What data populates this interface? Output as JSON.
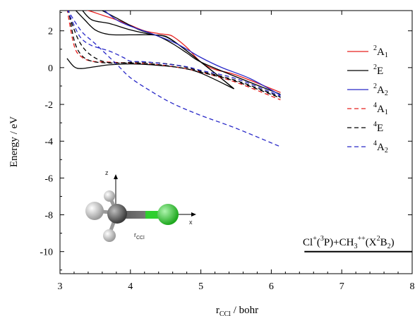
{
  "chart_data": {
    "type": "line",
    "xlabel": {
      "main": "r",
      "sub": "CCl",
      "rest": " / bohr"
    },
    "ylabel": "Energy / eV",
    "xlim": [
      3,
      8
    ],
    "ylim": [
      -11.2,
      3.1
    ],
    "xticks": [
      "3",
      "4",
      "5",
      "6",
      "7",
      "8"
    ],
    "yticks": [
      "2",
      "0",
      "-2",
      "-4",
      "-6",
      "-8",
      "-10"
    ],
    "legend_position": "right",
    "series": [
      {
        "name": {
          "sup": "2",
          "base": "A",
          "sub": "1"
        },
        "color": "#e8201e",
        "dash": "solid",
        "points": [
          [
            3.25,
            3.2
          ],
          [
            3.4,
            3.1
          ],
          [
            3.6,
            2.85
          ],
          [
            3.8,
            2.6
          ],
          [
            4.0,
            2.3
          ],
          [
            4.2,
            2.0
          ],
          [
            4.4,
            1.85
          ],
          [
            4.5,
            1.8
          ],
          [
            4.6,
            1.7
          ],
          [
            4.8,
            1.1
          ],
          [
            5.0,
            0.3
          ],
          [
            5.2,
            -0.1
          ],
          [
            5.5,
            -0.4
          ],
          [
            6.13,
            -1.35
          ]
        ]
      },
      {
        "name": {
          "sup": "2",
          "base": "E",
          "sub": ""
        },
        "color": "#000000",
        "dash": "solid",
        "points": [
          [
            3.1,
            0.5
          ],
          [
            3.2,
            0.05
          ],
          [
            3.3,
            -0.05
          ],
          [
            3.5,
            0.05
          ],
          [
            3.7,
            0.15
          ],
          [
            4.0,
            0.2
          ],
          [
            4.3,
            0.15
          ],
          [
            4.7,
            0.0
          ],
          [
            5.0,
            -0.3
          ],
          [
            5.47,
            -1.15
          ]
        ]
      },
      {
        "name": {
          "sup": "2",
          "base": "E",
          "sub": ""
        },
        "color": "#000000",
        "dash": "solid",
        "points": [
          [
            3.2,
            3.2
          ],
          [
            3.35,
            2.6
          ],
          [
            3.5,
            2.05
          ],
          [
            3.7,
            1.8
          ],
          [
            4.0,
            1.78
          ],
          [
            4.3,
            1.78
          ],
          [
            4.5,
            1.68
          ],
          [
            4.7,
            1.2
          ],
          [
            5.0,
            0.3
          ],
          [
            5.2,
            -0.3
          ],
          [
            5.47,
            -1.15
          ]
        ]
      },
      {
        "name": {
          "sup": "2",
          "base": "E",
          "sub": ""
        },
        "color": "#000000",
        "dash": "solid",
        "points": [
          [
            3.3,
            3.2
          ],
          [
            3.45,
            2.6
          ],
          [
            3.7,
            2.4
          ],
          [
            4.0,
            2.05
          ],
          [
            4.3,
            1.8
          ],
          [
            4.5,
            1.7
          ],
          [
            4.7,
            1.2
          ],
          [
            5.0,
            0.3
          ],
          [
            5.2,
            -0.3
          ],
          [
            5.47,
            -1.15
          ]
        ]
      },
      {
        "name": {
          "sup": "2",
          "base": "E",
          "sub": ""
        },
        "color": "#000000",
        "dash": "solid",
        "points": [
          [
            3.55,
            3.2
          ],
          [
            3.8,
            2.7
          ],
          [
            4.1,
            2.1
          ],
          [
            4.4,
            1.7
          ],
          [
            4.6,
            1.3
          ],
          [
            4.8,
            0.8
          ],
          [
            5.0,
            0.3
          ],
          [
            5.5,
            -0.5
          ],
          [
            6.13,
            -1.45
          ]
        ]
      },
      {
        "name": {
          "sup": "2",
          "base": "A",
          "sub": "2"
        },
        "color": "#2929c8",
        "dash": "solid",
        "points": [
          [
            3.6,
            3.2
          ],
          [
            3.8,
            2.6
          ],
          [
            4.0,
            2.25
          ],
          [
            4.3,
            1.85
          ],
          [
            4.6,
            1.4
          ],
          [
            4.8,
            1.0
          ],
          [
            5.0,
            0.55
          ],
          [
            5.3,
            0.0
          ],
          [
            5.7,
            -0.6
          ],
          [
            6.13,
            -1.5
          ]
        ]
      },
      {
        "name": {
          "sup": "4",
          "base": "A",
          "sub": "1"
        },
        "color": "#e8201e",
        "dash": "dashed",
        "points": [
          [
            3.1,
            3.2
          ],
          [
            3.2,
            1.2
          ],
          [
            3.3,
            0.6
          ],
          [
            3.45,
            0.35
          ],
          [
            3.7,
            0.3
          ],
          [
            4.0,
            0.25
          ],
          [
            4.3,
            0.2
          ],
          [
            4.7,
            0.0
          ],
          [
            5.0,
            -0.25
          ],
          [
            5.5,
            -0.8
          ],
          [
            6.13,
            -1.75
          ]
        ]
      },
      {
        "name": {
          "sup": "4",
          "base": "E",
          "sub": ""
        },
        "color": "#000000",
        "dash": "dashed",
        "points": [
          [
            3.12,
            3.2
          ],
          [
            3.2,
            1.5
          ],
          [
            3.3,
            0.7
          ],
          [
            3.45,
            0.35
          ],
          [
            3.7,
            0.25
          ],
          [
            4.0,
            0.25
          ],
          [
            4.3,
            0.2
          ],
          [
            4.7,
            0.0
          ],
          [
            5.0,
            -0.25
          ],
          [
            5.5,
            -0.75
          ],
          [
            6.13,
            -1.65
          ]
        ]
      },
      {
        "name": {
          "sup": "4",
          "base": "E",
          "sub": ""
        },
        "color": "#000000",
        "dash": "dashed",
        "points": [
          [
            3.1,
            3.2
          ],
          [
            3.25,
            1.6
          ],
          [
            3.4,
            0.8
          ],
          [
            3.6,
            0.35
          ],
          [
            3.8,
            0.25
          ],
          [
            4.1,
            0.3
          ],
          [
            4.4,
            0.25
          ],
          [
            4.7,
            0.1
          ],
          [
            5.0,
            -0.2
          ],
          [
            5.5,
            -0.7
          ],
          [
            6.13,
            -1.6
          ]
        ]
      },
      {
        "name": {
          "sup": "4",
          "base": "A",
          "sub": "2"
        },
        "color": "#2929c8",
        "dash": "dashed",
        "points": [
          [
            3.1,
            3.2
          ],
          [
            3.2,
            2.3
          ],
          [
            3.3,
            1.6
          ],
          [
            3.45,
            1.2
          ],
          [
            3.7,
            0.9
          ],
          [
            3.9,
            0.55
          ],
          [
            4.0,
            0.35
          ],
          [
            4.2,
            0.32
          ],
          [
            4.5,
            0.2
          ],
          [
            4.8,
            0.05
          ],
          [
            5.0,
            -0.15
          ],
          [
            5.5,
            -0.6
          ],
          [
            6.13,
            -1.55
          ]
        ]
      },
      {
        "name": {
          "sup": "4",
          "base": "A",
          "sub": "2"
        },
        "color": "#2929c8",
        "dash": "dashed",
        "points": [
          [
            3.1,
            3.2
          ],
          [
            3.3,
            2.0
          ],
          [
            3.5,
            1.3
          ],
          [
            3.8,
            0.2
          ],
          [
            4.0,
            -0.55
          ],
          [
            4.3,
            -1.3
          ],
          [
            4.6,
            -1.95
          ],
          [
            5.0,
            -2.6
          ],
          [
            5.5,
            -3.3
          ],
          [
            6.13,
            -4.3
          ]
        ]
      }
    ],
    "legend": [
      {
        "sup": "2",
        "base": "A",
        "sub": "1",
        "color": "#e8201e",
        "dash": "solid"
      },
      {
        "sup": "2",
        "base": "E",
        "sub": "",
        "color": "#000000",
        "dash": "solid"
      },
      {
        "sup": "2",
        "base": "A",
        "sub": "2",
        "color": "#2929c8",
        "dash": "solid"
      },
      {
        "sup": "4",
        "base": "A",
        "sub": "1",
        "color": "#e8201e",
        "dash": "dashed"
      },
      {
        "sup": "4",
        "base": "E",
        "sub": "",
        "color": "#000000",
        "dash": "dashed"
      },
      {
        "sup": "4",
        "base": "A",
        "sub": "2",
        "color": "#2929c8",
        "dash": "dashed"
      }
    ],
    "asymptote": {
      "label_parts": [
        "Cl",
        "+",
        "(",
        "3",
        "P)+CH",
        "3",
        "++",
        "(X",
        "2",
        "B",
        "2",
        ")"
      ],
      "y": -10.0,
      "x_range": [
        6.47,
        8.0
      ]
    },
    "molecule_inset": {
      "z_label": "z",
      "x_label": "x",
      "r_label": "r",
      "r_label_sub": "CCl",
      "colors": {
        "carbon": "#6b6b6b",
        "chlorine": "#22cc22",
        "hydrogen": "#dcdcdc"
      }
    }
  }
}
